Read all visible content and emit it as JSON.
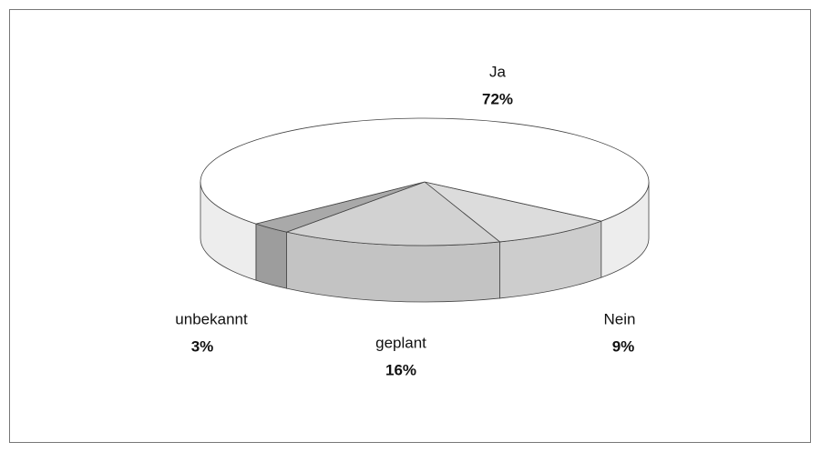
{
  "chart_data": {
    "type": "pie3d",
    "categories": [
      "Nein",
      "geplant",
      "unbekannt",
      "Ja"
    ],
    "values": [
      9,
      16,
      3,
      72
    ],
    "value_labels": [
      "9%",
      "16%",
      "3%",
      "72%"
    ],
    "colors": [
      "#dcdcdc",
      "#d2d2d2",
      "#a9a9a9",
      "#ffffff"
    ]
  }
}
